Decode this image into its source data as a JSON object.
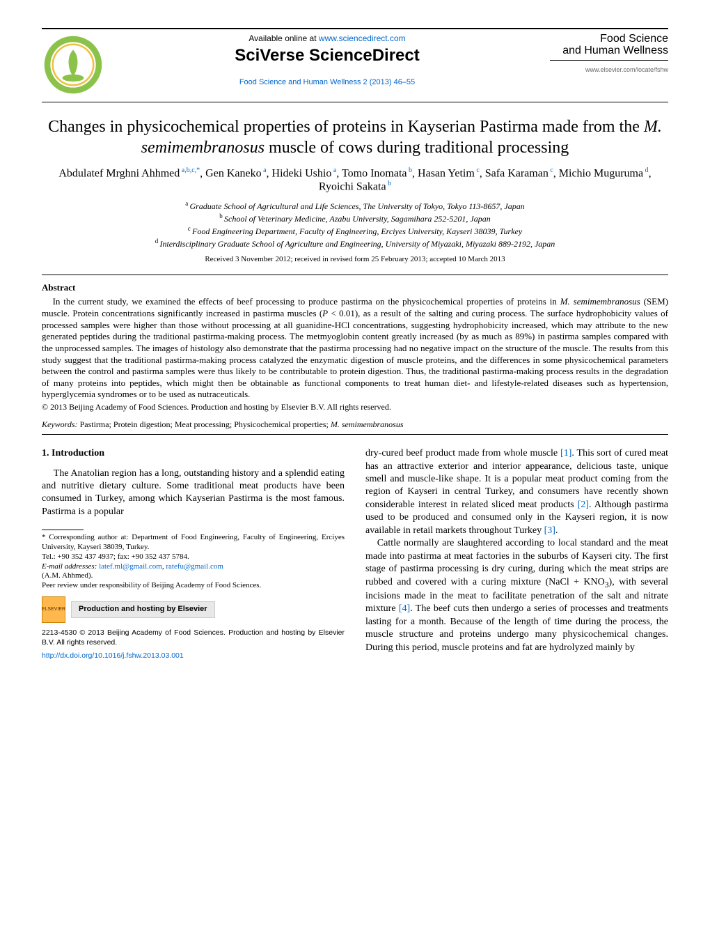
{
  "header": {
    "available_online_prefix": "Available online at ",
    "available_online_url": "www.sciencedirect.com",
    "platform_name": "SciVerse ScienceDirect",
    "journal_ref": "Food Science and Human Wellness 2 (2013) 46–55",
    "journal_title_line1": "Food Science",
    "journal_title_line2": "and Human Wellness",
    "journal_url": "www.elsevier.com/locate/fshw",
    "logo_colors": {
      "outer": "#8bc34a",
      "inner": "#ffffff",
      "ring": "#f0c040"
    }
  },
  "article": {
    "title_segments": [
      {
        "text": "Changes in physicochemical properties of proteins in Kayserian Pastirma made from the ",
        "italic": false
      },
      {
        "text": "M. semimembranosus",
        "italic": true
      },
      {
        "text": " muscle of cows during traditional processing",
        "italic": false
      }
    ],
    "authors": [
      {
        "name": "Abdulatef Mrghni Ahhmed",
        "aff": "a,b,c,",
        "corr": true
      },
      {
        "name": "Gen Kaneko",
        "aff": "a"
      },
      {
        "name": "Hideki Ushio",
        "aff": "a"
      },
      {
        "name": "Tomo Inomata",
        "aff": "b"
      },
      {
        "name": "Hasan Yetim",
        "aff": "c"
      },
      {
        "name": "Safa Karaman",
        "aff": "c"
      },
      {
        "name": "Michio Muguruma",
        "aff": "d"
      },
      {
        "name": "Ryoichi Sakata",
        "aff": "b"
      }
    ],
    "affiliations": [
      {
        "letter": "a",
        "text": "Graduate School of Agricultural and Life Sciences, The University of Tokyo, Tokyo 113-8657, Japan"
      },
      {
        "letter": "b",
        "text": "School of Veterinary Medicine, Azabu University, Sagamihara 252-5201, Japan"
      },
      {
        "letter": "c",
        "text": "Food Engineering Department, Faculty of Engineering, Erciyes University, Kayseri 38039, Turkey"
      },
      {
        "letter": "d",
        "text": "Interdisciplinary Graduate School of Agriculture and Engineering, University of Miyazaki, Miyazaki 889-2192, Japan"
      }
    ],
    "dates": "Received 3 November 2012; received in revised form 25 February 2013; accepted 10 March 2013"
  },
  "abstract": {
    "heading": "Abstract",
    "body_parts": [
      "In the current study, we examined the effects of beef processing to produce pastirma on the physicochemical properties of proteins in ",
      "M. semimembranosus",
      " (SEM) muscle. Protein concentrations significantly increased in pastirma muscles (",
      "P",
      " < 0.01), as a result of the salting and curing process. The surface hydrophobicity values of processed samples were higher than those without processing at all guanidine-HCl concentrations, suggesting hydrophobicity increased, which may attribute to the new generated peptides during the traditional pastirma-making process. The metmyoglobin content greatly increased (by as much as 89%) in pastirma samples compared with the unprocessed samples. The images of histology also demonstrate that the pastirma processing had no negative impact on the structure of the muscle. The results from this study suggest that the traditional pastirma-making process catalyzed the enzymatic digestion of muscle proteins, and the differences in some physicochemical parameters between the control and pastirma samples were thus likely to be contributable to protein digestion. Thus, the traditional pastirma-making process results in the degradation of many proteins into peptides, which might then be obtainable as functional components to treat human diet- and lifestyle-related diseases such as hypertension, hyperglycemia syndromes or to be used as nutraceuticals."
    ],
    "copyright": "© 2013 Beijing Academy of Food Sciences. Production and hosting by Elsevier B.V. All rights reserved.",
    "keywords_label": "Keywords:",
    "keywords": " Pastirma; Protein digestion; Meat processing; Physicochemical properties; ",
    "keywords_ital": "M. semimembranosus"
  },
  "body": {
    "section_heading": "1.  Introduction",
    "col1_p1": "The Anatolian region has a long, outstanding history and a splendid eating and nutritive dietary culture. Some traditional meat products have been consumed in Turkey, among which Kayserian Pastirma is the most famous. Pastirma is a popular",
    "col2_p1_a": "dry-cured beef product made from whole muscle ",
    "col2_p1_cite1": "[1]",
    "col2_p1_b": ". This sort of cured meat has an attractive exterior and interior appearance, delicious taste, unique smell and muscle-like shape. It is a popular meat product coming from the region of Kayseri in central Turkey, and consumers have recently shown considerable interest in related sliced meat products ",
    "col2_p1_cite2": "[2]",
    "col2_p1_c": ". Although pastirma used to be produced and consumed only in the Kayseri region, it is now available in retail markets throughout Turkey ",
    "col2_p1_cite3": "[3]",
    "col2_p1_d": ".",
    "col2_p2_a": "Cattle normally are slaughtered according to local standard and the meat made into pastirma at meat factories in the suburbs of Kayseri city. The first stage of pastirma processing is dry curing, during which the meat strips are rubbed and covered with a curing mixture (NaCl + KNO",
    "col2_p2_sub": "3",
    "col2_p2_b": "), with several incisions made in the meat to facilitate penetration of the salt and nitrate mixture ",
    "col2_p2_cite4": "[4]",
    "col2_p2_c": ". The beef cuts then undergo a series of processes and treatments lasting for a month. Because of the length of time during the process, the muscle structure and proteins undergo many physicochemical changes. During this period, muscle proteins and fat are hydrolyzed mainly by"
  },
  "footnotes": {
    "corr_label": "* Corresponding author at: Department of Food Engineering, Faculty of Engineering, Erciyes University, Kayseri 38039, Turkey.",
    "tel_fax": "Tel.: +90 352 437 4937; fax: +90 352 437 5784.",
    "email_label": "E-mail addresses:",
    "email1": "latef.ml@gmail.com",
    "email2": "ratefu@gmail.com",
    "email_author": "(A.M. Ahhmed).",
    "peer_review": "Peer review under responsibility of Beijing Academy of Food Sciences.",
    "hosting_text": "Production and hosting by Elsevier",
    "issn_line": "2213-4530 © 2013 Beijing Academy of Food Sciences. Production and hosting by Elsevier B.V. All rights reserved.",
    "doi": "http://dx.doi.org/10.1016/j.fshw.2013.03.001"
  },
  "colors": {
    "link": "#0066cc",
    "text": "#000000",
    "elsevier_orange": "#ffb84d",
    "hosting_bg": "#e8e8e8"
  }
}
